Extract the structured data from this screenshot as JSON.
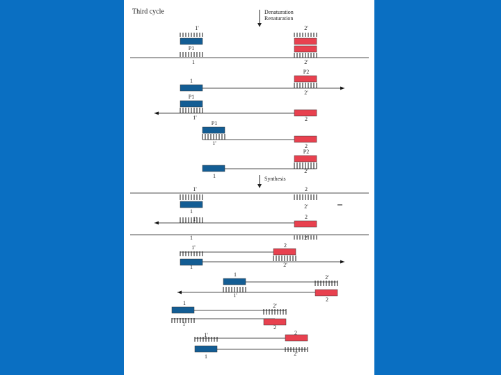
{
  "title": "Third cycle",
  "steps": [
    "Denaturation",
    "Renaturation",
    "Synthesis"
  ],
  "labels": [
    "1'",
    "2'",
    "P1",
    "P2",
    "1",
    "2'",
    "P2",
    "1",
    "2'",
    "P1",
    "1'",
    "2",
    "P1",
    "1'",
    "2",
    "P2",
    "1",
    "2'",
    "1'",
    "1",
    "2",
    "2'",
    "1'",
    "2",
    "1",
    "2'",
    "1'",
    "2",
    "2'",
    "1",
    "1",
    "2'",
    "1'",
    "2",
    "1",
    "2'",
    "1'",
    "2",
    "1'",
    "2",
    "2'",
    "1"
  ]
}
